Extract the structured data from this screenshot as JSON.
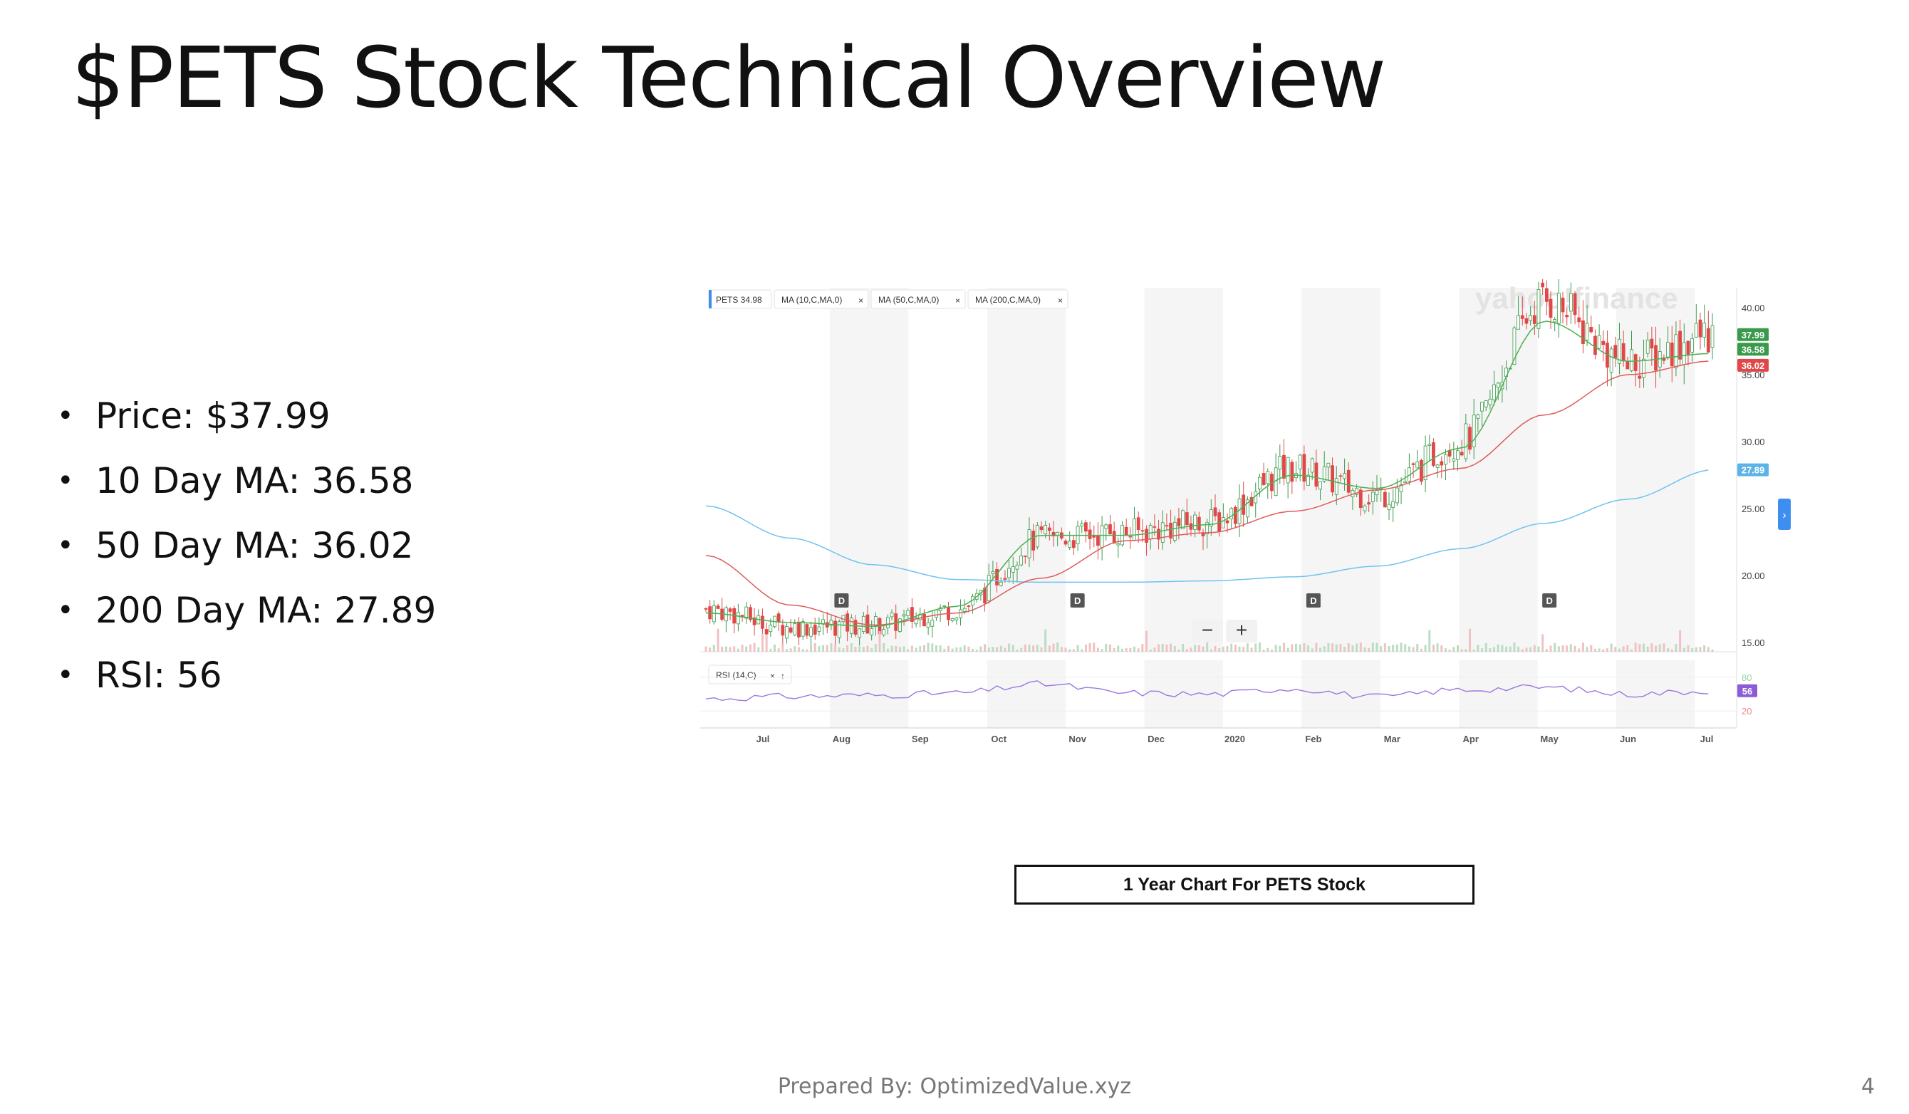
{
  "slide": {
    "title": "$PETS Stock Technical Overview",
    "bullets": [
      "Price: $37.99",
      "10 Day MA: 36.58",
      "50 Day MA: 36.02",
      "200 Day MA: 27.89",
      "RSI: 56"
    ],
    "caption": "1 Year Chart For PETS Stock",
    "footer": "Prepared By: OptimizedValue.xyz",
    "page_number": "4"
  },
  "chart_data": {
    "type": "line",
    "title": "",
    "source_watermark": "yahoo!finance",
    "indicator_pills": [
      "PETS 34.98",
      "MA (10,C,MA,0)",
      "MA (50,C,MA,0)",
      "MA (200,C,MA,0)"
    ],
    "rsi_pill": "RSI (14,C)",
    "x_ticks": [
      "Jul",
      "Aug",
      "Sep",
      "Oct",
      "Nov",
      "Dec",
      "2020",
      "Feb",
      "Mar",
      "Apr",
      "May",
      "Jun",
      "Jul"
    ],
    "y_ticks": [
      "40.00",
      "35.00",
      "30.00",
      "25.00",
      "20.00",
      "15.00"
    ],
    "ylim": [
      15,
      40
    ],
    "rsi_levels": [
      "80",
      "20"
    ],
    "rsi_ylim": [
      0,
      100
    ],
    "dividend_marker": "D",
    "dividend_months": [
      "Aug",
      "Nov",
      "Feb",
      "May"
    ],
    "price_tags": [
      {
        "label": "37.99",
        "color": "#3a9a4b"
      },
      {
        "label": "36.58",
        "color": "#3a9a4b"
      },
      {
        "label": "36.02",
        "color": "#e04848"
      },
      {
        "label": "27.89",
        "color": "#5cb3e8"
      }
    ],
    "rsi_tag": {
      "label": "56",
      "color": "#8a5cd6"
    },
    "colors": {
      "up": "#3a9a4b",
      "down": "#e04848",
      "ma10": "#4caf50",
      "ma50": "#e05b5b",
      "ma200": "#6fc3ef",
      "rsi": "#9a78e0"
    },
    "series": [
      {
        "name": "PETS 34.98",
        "x": [
          "Jul",
          "Aug",
          "Sep",
          "Oct",
          "Nov",
          "Dec",
          "2020",
          "Feb",
          "Mar",
          "Apr",
          "May",
          "Jun",
          "Jul"
        ],
        "values": [
          17.5,
          16.2,
          16.3,
          17.5,
          22.8,
          23.2,
          24.0,
          28.0,
          26.0,
          30.0,
          40.5,
          36.0,
          37.99
        ]
      },
      {
        "name": "MA (10,C,MA,0)",
        "values": [
          17.2,
          16.5,
          16.2,
          17.7,
          23.0,
          23.0,
          23.8,
          27.5,
          26.5,
          29.5,
          39.0,
          36.0,
          36.58
        ]
      },
      {
        "name": "MA (50,C,MA,0)",
        "values": [
          21.5,
          17.8,
          16.3,
          17.2,
          19.8,
          22.6,
          23.2,
          24.8,
          26.4,
          28.0,
          32.0,
          35.0,
          36.02
        ]
      },
      {
        "name": "MA (200,C,MA,0)",
        "values": [
          25.2,
          22.8,
          20.8,
          19.7,
          19.5,
          19.5,
          19.6,
          19.9,
          20.7,
          22.0,
          23.9,
          25.7,
          27.89
        ]
      },
      {
        "name": "RSI (14,C)",
        "values": [
          42,
          46,
          48,
          52,
          68,
          52,
          50,
          60,
          45,
          58,
          62,
          50,
          56
        ]
      }
    ]
  }
}
